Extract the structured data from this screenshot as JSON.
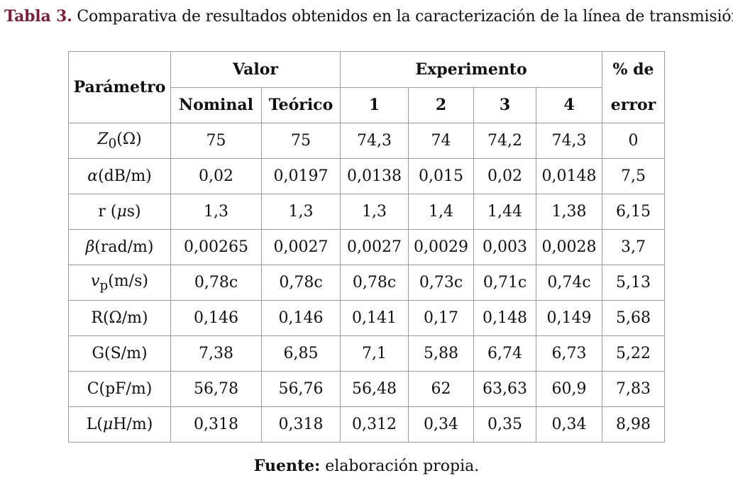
{
  "caption": {
    "label": "Tabla 3.",
    "text": "Comparativa de resultados obtenidos en la caracterización de la línea de transmisión"
  },
  "table": {
    "headers": {
      "parameter": "Parámetro",
      "value_group": "Valor",
      "experiment_group": "Experimento",
      "error_line1": "% de",
      "error_line2": "error",
      "nominal": "Nominal",
      "theoretical": "Teórico",
      "exp": [
        "1",
        "2",
        "3",
        "4"
      ]
    },
    "rows": [
      {
        "param": {
          "main": "Z",
          "sub": "0",
          "rest": "(Ω)"
        },
        "cells": [
          "75",
          "75",
          "74,3",
          "74",
          "74,2",
          "74,3",
          "0"
        ]
      },
      {
        "param": {
          "main": "α",
          "rest": "(dB/m)"
        },
        "cells": [
          "0,02",
          "0,0197",
          "0,0138",
          "0,015",
          "0,02",
          "0,0148",
          "7,5"
        ]
      },
      {
        "param": {
          "pre": "r (",
          "main": "μ",
          "rest": "s)"
        },
        "cells": [
          "1,3",
          "1,3",
          "1,3",
          "1,4",
          "1,44",
          "1,38",
          "6,15"
        ]
      },
      {
        "param": {
          "main": "β",
          "rest": "(rad/m)"
        },
        "cells": [
          "0,00265",
          "0,0027",
          "0,0027",
          "0,0029",
          "0,003",
          "0,0028",
          "3,7"
        ]
      },
      {
        "param": {
          "main": "v",
          "sub": "p",
          "rest": "(m/s)"
        },
        "cells": [
          "0,78c",
          "0,78c",
          "0,78c",
          "0,73c",
          "0,71c",
          "0,74c",
          "5,13"
        ]
      },
      {
        "param": {
          "pre": "R(Ω/m)"
        },
        "cells": [
          "0,146",
          "0,146",
          "0,141",
          "0,17",
          "0,148",
          "0,149",
          "5,68"
        ]
      },
      {
        "param": {
          "pre": "G(S/m)"
        },
        "cells": [
          "7,38",
          "6,85",
          "7,1",
          "5,88",
          "6,74",
          "6,73",
          "5,22"
        ]
      },
      {
        "param": {
          "pre": "C(pF/m)"
        },
        "cells": [
          "56,78",
          "56,76",
          "56,48",
          "62",
          "63,63",
          "60,9",
          "7,83"
        ]
      },
      {
        "param": {
          "pre": "L(",
          "main": "μ",
          "rest": "H/m)"
        },
        "cells": [
          "0,318",
          "0,318",
          "0,312",
          "0,34",
          "0,35",
          "0,34",
          "8,98"
        ]
      }
    ]
  },
  "source": {
    "label": "Fuente:",
    "text": "elaboración propia."
  }
}
